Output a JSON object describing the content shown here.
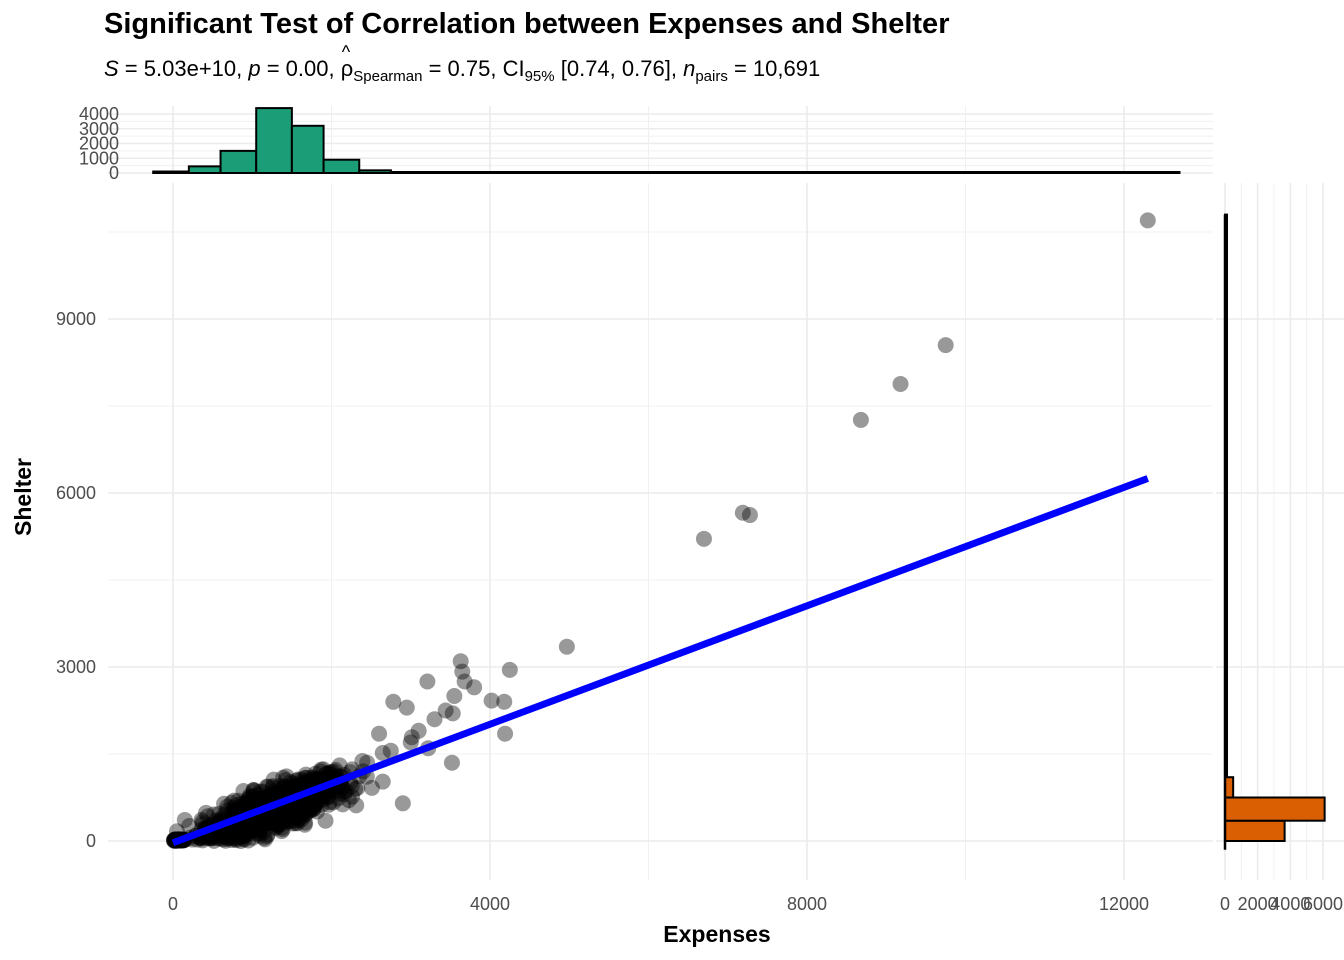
{
  "chart_data": {
    "type": "scatter",
    "title": "Significant Test of Correlation between Expenses and Shelter",
    "subtitle": {
      "S_label": "S",
      "S_value": " = 5.03e+10, ",
      "p_label": "p",
      "p_value": " = 0.00, ",
      "rho_symbol": "ρ",
      "rho_sub": "Spearman",
      "rho_value": " = 0.75, CI",
      "ci_sub": "95%",
      "ci_value": " [0.74, 0.76], ",
      "n_label": "n",
      "n_sub": "pairs",
      "n_value": " = 10,691"
    },
    "xlabel": "Expenses",
    "ylabel": "Shelter",
    "xlim": [
      -500,
      13000
    ],
    "ylim": [
      -850,
      11000
    ],
    "x_ticks": [
      0,
      4000,
      8000,
      12000
    ],
    "y_ticks": [
      0,
      3000,
      6000,
      9000
    ],
    "grid": true,
    "points_outliers": [
      {
        "x": 12300,
        "y": 10700
      },
      {
        "x": 9750,
        "y": 8550
      },
      {
        "x": 9180,
        "y": 7880
      },
      {
        "x": 8680,
        "y": 7260
      },
      {
        "x": 7190,
        "y": 5660
      },
      {
        "x": 7280,
        "y": 5620
      },
      {
        "x": 6700,
        "y": 5210
      },
      {
        "x": 4970,
        "y": 3350
      },
      {
        "x": 4250,
        "y": 2950
      },
      {
        "x": 3630,
        "y": 3100
      },
      {
        "x": 3650,
        "y": 2920
      },
      {
        "x": 3680,
        "y": 2750
      },
      {
        "x": 3800,
        "y": 2650
      },
      {
        "x": 4020,
        "y": 2420
      },
      {
        "x": 4180,
        "y": 2400
      },
      {
        "x": 4190,
        "y": 1850
      },
      {
        "x": 3520,
        "y": 1350
      },
      {
        "x": 3210,
        "y": 2750
      },
      {
        "x": 3300,
        "y": 2100
      },
      {
        "x": 2780,
        "y": 2400
      },
      {
        "x": 2950,
        "y": 2300
      },
      {
        "x": 3530,
        "y": 2200
      },
      {
        "x": 3220,
        "y": 1600
      },
      {
        "x": 3550,
        "y": 2500
      },
      {
        "x": 3440,
        "y": 2250
      },
      {
        "x": 3100,
        "y": 1900
      },
      {
        "x": 2600,
        "y": 1850
      },
      {
        "x": 3000,
        "y": 1700
      },
      {
        "x": 2400,
        "y": 1200
      },
      {
        "x": 2900,
        "y": 650
      }
    ],
    "regression_line": {
      "x": [
        0,
        12300
      ],
      "y": [
        -30,
        6250
      ],
      "color": "#0000FF"
    },
    "x_marginal_histogram": {
      "color": "#1B9E77",
      "y_ticks": [
        0,
        1000,
        2000,
        3000,
        4000
      ],
      "bins": [
        {
          "x0": -250,
          "x1": 200,
          "count": 100
        },
        {
          "x0": 200,
          "x1": 600,
          "count": 450
        },
        {
          "x0": 600,
          "x1": 1050,
          "count": 1500
        },
        {
          "x0": 1050,
          "x1": 1500,
          "count": 4400
        },
        {
          "x0": 1500,
          "x1": 1900,
          "count": 3200
        },
        {
          "x0": 1900,
          "x1": 2350,
          "count": 900
        },
        {
          "x0": 2350,
          "x1": 2750,
          "count": 180
        },
        {
          "x0": 2750,
          "x1": 3200,
          "count": 60
        },
        {
          "x0": 3200,
          "x1": 12700,
          "count": 5
        }
      ]
    },
    "y_marginal_histogram": {
      "color": "#D95F02",
      "x_ticks": [
        0,
        2000,
        4000,
        6000
      ],
      "x_tick_labels": [
        "0",
        "2000",
        "4000",
        "6000"
      ],
      "bins": [
        {
          "y0": 0,
          "y1": 350,
          "count": 3650
        },
        {
          "y0": 350,
          "y1": 750,
          "count": 6100
        },
        {
          "y0": 750,
          "y1": 1100,
          "count": 500
        },
        {
          "y0": 1100,
          "y1": 1450,
          "count": 40
        },
        {
          "y0": 1450,
          "y1": 10800,
          "count": 3
        }
      ]
    }
  }
}
